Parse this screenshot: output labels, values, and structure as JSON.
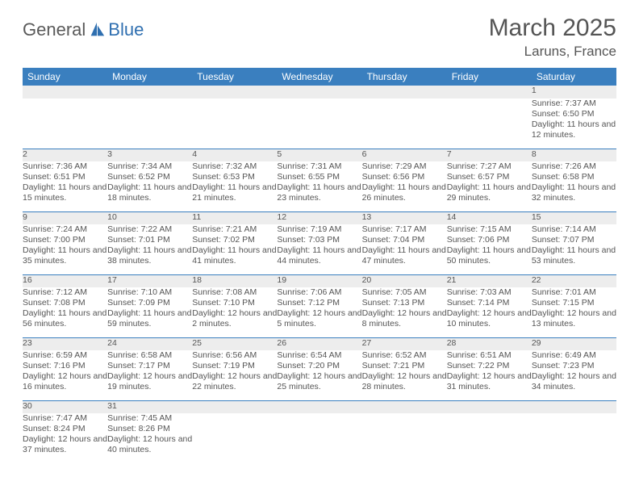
{
  "brand": {
    "part1": "General",
    "part2": "Blue"
  },
  "title": "March 2025",
  "location": "Laruns, France",
  "header_color": "#3a7fbf",
  "weekdays": [
    "Sunday",
    "Monday",
    "Tuesday",
    "Wednesday",
    "Thursday",
    "Friday",
    "Saturday"
  ],
  "weeks": [
    {
      "nums": [
        "",
        "",
        "",
        "",
        "",
        "",
        "1"
      ],
      "cells": [
        "",
        "",
        "",
        "",
        "",
        "",
        "Sunrise: 7:37 AM\nSunset: 6:50 PM\nDaylight: 11 hours and 12 minutes."
      ]
    },
    {
      "nums": [
        "2",
        "3",
        "4",
        "5",
        "6",
        "7",
        "8"
      ],
      "cells": [
        "Sunrise: 7:36 AM\nSunset: 6:51 PM\nDaylight: 11 hours and 15 minutes.",
        "Sunrise: 7:34 AM\nSunset: 6:52 PM\nDaylight: 11 hours and 18 minutes.",
        "Sunrise: 7:32 AM\nSunset: 6:53 PM\nDaylight: 11 hours and 21 minutes.",
        "Sunrise: 7:31 AM\nSunset: 6:55 PM\nDaylight: 11 hours and 23 minutes.",
        "Sunrise: 7:29 AM\nSunset: 6:56 PM\nDaylight: 11 hours and 26 minutes.",
        "Sunrise: 7:27 AM\nSunset: 6:57 PM\nDaylight: 11 hours and 29 minutes.",
        "Sunrise: 7:26 AM\nSunset: 6:58 PM\nDaylight: 11 hours and 32 minutes."
      ]
    },
    {
      "nums": [
        "9",
        "10",
        "11",
        "12",
        "13",
        "14",
        "15"
      ],
      "cells": [
        "Sunrise: 7:24 AM\nSunset: 7:00 PM\nDaylight: 11 hours and 35 minutes.",
        "Sunrise: 7:22 AM\nSunset: 7:01 PM\nDaylight: 11 hours and 38 minutes.",
        "Sunrise: 7:21 AM\nSunset: 7:02 PM\nDaylight: 11 hours and 41 minutes.",
        "Sunrise: 7:19 AM\nSunset: 7:03 PM\nDaylight: 11 hours and 44 minutes.",
        "Sunrise: 7:17 AM\nSunset: 7:04 PM\nDaylight: 11 hours and 47 minutes.",
        "Sunrise: 7:15 AM\nSunset: 7:06 PM\nDaylight: 11 hours and 50 minutes.",
        "Sunrise: 7:14 AM\nSunset: 7:07 PM\nDaylight: 11 hours and 53 minutes."
      ]
    },
    {
      "nums": [
        "16",
        "17",
        "18",
        "19",
        "20",
        "21",
        "22"
      ],
      "cells": [
        "Sunrise: 7:12 AM\nSunset: 7:08 PM\nDaylight: 11 hours and 56 minutes.",
        "Sunrise: 7:10 AM\nSunset: 7:09 PM\nDaylight: 11 hours and 59 minutes.",
        "Sunrise: 7:08 AM\nSunset: 7:10 PM\nDaylight: 12 hours and 2 minutes.",
        "Sunrise: 7:06 AM\nSunset: 7:12 PM\nDaylight: 12 hours and 5 minutes.",
        "Sunrise: 7:05 AM\nSunset: 7:13 PM\nDaylight: 12 hours and 8 minutes.",
        "Sunrise: 7:03 AM\nSunset: 7:14 PM\nDaylight: 12 hours and 10 minutes.",
        "Sunrise: 7:01 AM\nSunset: 7:15 PM\nDaylight: 12 hours and 13 minutes."
      ]
    },
    {
      "nums": [
        "23",
        "24",
        "25",
        "26",
        "27",
        "28",
        "29"
      ],
      "cells": [
        "Sunrise: 6:59 AM\nSunset: 7:16 PM\nDaylight: 12 hours and 16 minutes.",
        "Sunrise: 6:58 AM\nSunset: 7:17 PM\nDaylight: 12 hours and 19 minutes.",
        "Sunrise: 6:56 AM\nSunset: 7:19 PM\nDaylight: 12 hours and 22 minutes.",
        "Sunrise: 6:54 AM\nSunset: 7:20 PM\nDaylight: 12 hours and 25 minutes.",
        "Sunrise: 6:52 AM\nSunset: 7:21 PM\nDaylight: 12 hours and 28 minutes.",
        "Sunrise: 6:51 AM\nSunset: 7:22 PM\nDaylight: 12 hours and 31 minutes.",
        "Sunrise: 6:49 AM\nSunset: 7:23 PM\nDaylight: 12 hours and 34 minutes."
      ]
    },
    {
      "nums": [
        "30",
        "31",
        "",
        "",
        "",
        "",
        ""
      ],
      "cells": [
        "Sunrise: 7:47 AM\nSunset: 8:24 PM\nDaylight: 12 hours and 37 minutes.",
        "Sunrise: 7:45 AM\nSunset: 8:26 PM\nDaylight: 12 hours and 40 minutes.",
        "",
        "",
        "",
        "",
        ""
      ]
    }
  ]
}
